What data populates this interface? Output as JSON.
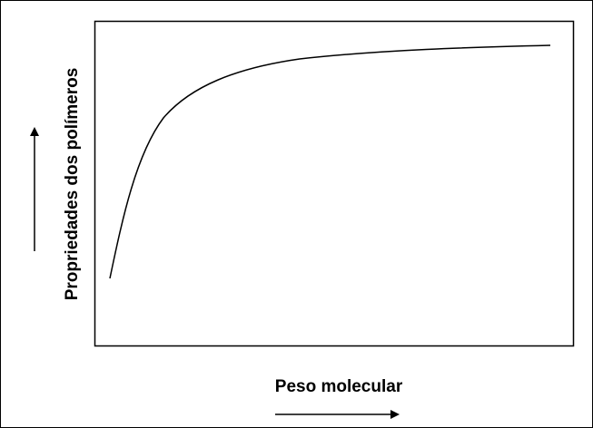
{
  "axes": {
    "x_label": "Peso molecular",
    "y_label": "Propriedades dos polímeros"
  }
}
